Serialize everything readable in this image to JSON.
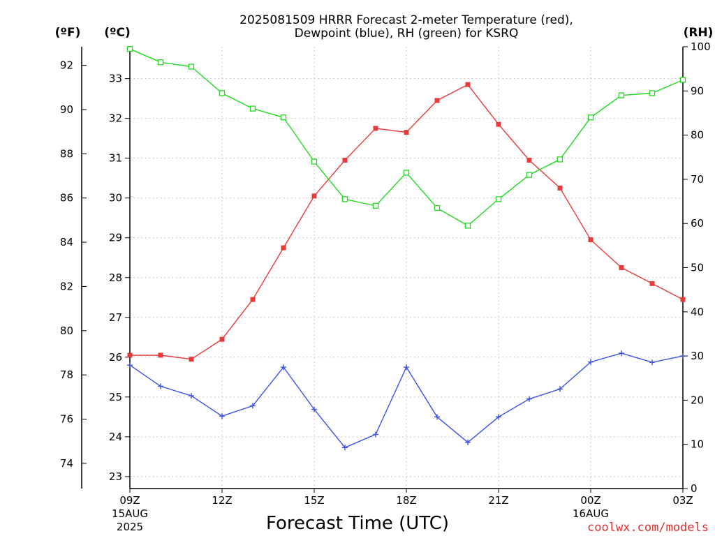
{
  "chart_data": {
    "type": "line",
    "title": "2025081509 HRRR Forecast 2-meter Temperature (red),",
    "subtitle": "Dewpoint (blue), RH (green) for KSRQ",
    "xlabel": "Forecast Time (UTC)",
    "credit": "coolwx.com/models",
    "unit_labels": {
      "fahrenheit": "(ºF)",
      "celsius": "(ºC)",
      "rh": "(RH)"
    },
    "x_ticks": [
      {
        "hour": 0,
        "label": "09Z",
        "label2": "15AUG",
        "label3": "2025"
      },
      {
        "hour": 3,
        "label": "12Z",
        "label2": "",
        "label3": ""
      },
      {
        "hour": 6,
        "label": "15Z",
        "label2": "",
        "label3": ""
      },
      {
        "hour": 9,
        "label": "18Z",
        "label2": "",
        "label3": ""
      },
      {
        "hour": 12,
        "label": "21Z",
        "label2": "",
        "label3": ""
      },
      {
        "hour": 15,
        "label": "00Z",
        "label2": "16AUG",
        "label3": ""
      },
      {
        "hour": 18,
        "label": "03Z",
        "label2": "",
        "label3": ""
      }
    ],
    "xlim": [
      0,
      18
    ],
    "celsius_axis": {
      "ylim": [
        22.7,
        33.8
      ],
      "ticks": [
        23,
        24,
        25,
        26,
        27,
        28,
        29,
        30,
        31,
        32,
        33
      ]
    },
    "fahrenheit_ticks": [
      74,
      76,
      78,
      80,
      82,
      84,
      86,
      88,
      90,
      92
    ],
    "rh_axis": {
      "ylim": [
        0,
        100
      ],
      "ticks": [
        0,
        10,
        20,
        30,
        40,
        50,
        60,
        70,
        80,
        90,
        100
      ]
    },
    "hours": [
      0,
      1,
      2,
      3,
      4,
      5,
      6,
      7,
      8,
      9,
      10,
      11,
      12,
      13,
      14,
      15,
      16,
      17,
      18
    ],
    "series": [
      {
        "key": "temperature",
        "axis": "celsius",
        "color": "#e83a3a",
        "marker": "filled-square",
        "values": [
          26.05,
          26.05,
          25.95,
          26.45,
          27.45,
          28.75,
          30.05,
          30.95,
          31.75,
          31.65,
          32.45,
          32.85,
          31.85,
          30.95,
          30.25,
          28.95,
          28.25,
          27.85,
          27.45
        ]
      },
      {
        "key": "dewpoint",
        "axis": "celsius",
        "color": "#3a50e8",
        "marker": "plus",
        "values": [
          25.8,
          25.27,
          25.03,
          24.52,
          24.78,
          25.75,
          24.69,
          23.73,
          24.06,
          25.75,
          24.5,
          23.86,
          24.5,
          24.95,
          25.2,
          25.88,
          26.1,
          25.87,
          26.03
        ]
      },
      {
        "key": "rh",
        "axis": "rh",
        "color": "#22d822",
        "marker": "open-square",
        "values": [
          99.5,
          96.5,
          95.5,
          89.5,
          86,
          84,
          74,
          65.5,
          64,
          71.5,
          63.5,
          59.5,
          65.5,
          71,
          74.5,
          84,
          89,
          89.5,
          92.5
        ]
      }
    ]
  }
}
